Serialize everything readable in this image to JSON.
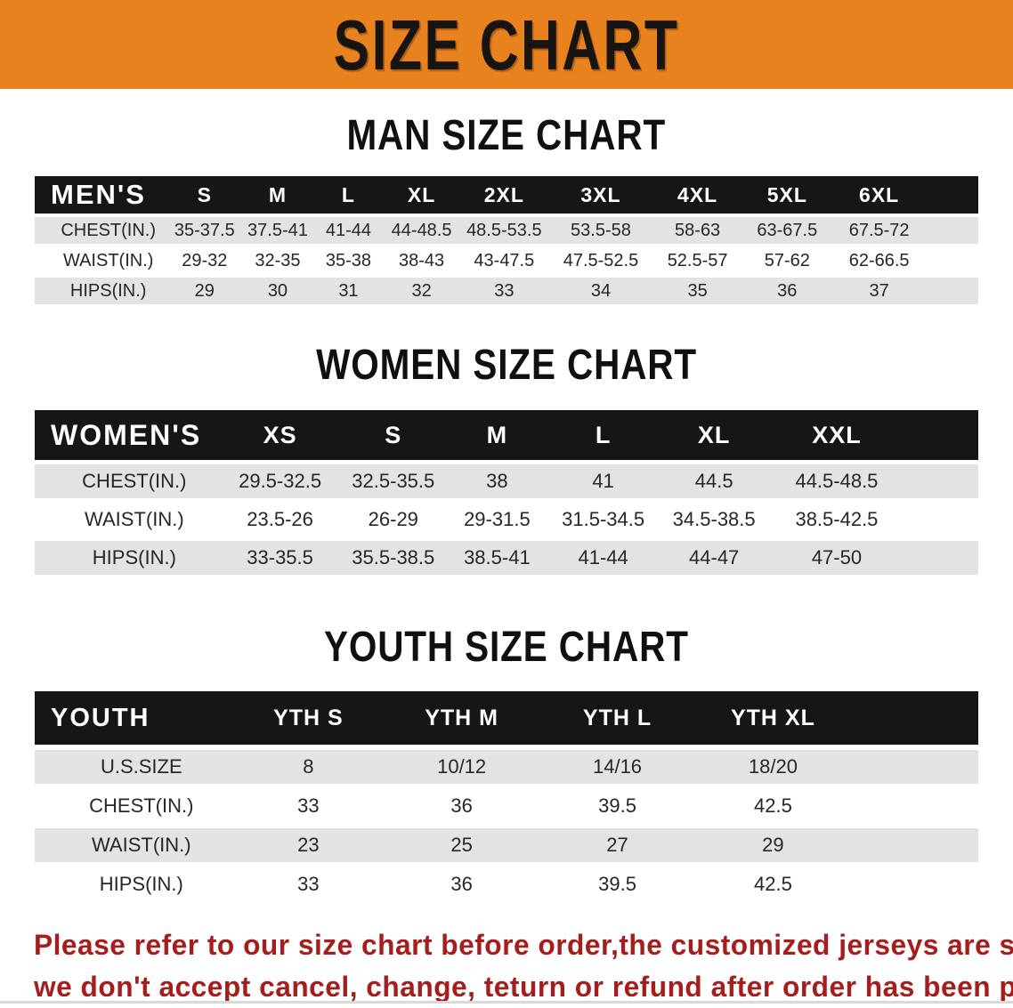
{
  "banner": {
    "title": "SIZE CHART"
  },
  "colors": {
    "banner_bg": "#e8821e",
    "banner_text": "#181411",
    "table_header_bar": "#161616",
    "row_stripe_gray": "#e3e3e3",
    "disclaimer_red": "#a51e1e"
  },
  "sections": {
    "men": {
      "heading": "MAN SIZE CHART",
      "header": {
        "label": "MEN'S",
        "sizes": [
          "S",
          "M",
          "L",
          "XL",
          "2XL",
          "3XL",
          "4XL",
          "5XL",
          "6XL"
        ]
      },
      "rows": [
        {
          "label": "CHEST(IN.)",
          "values": [
            "35-37.5",
            "37.5-41",
            "41-44",
            "44-48.5",
            "48.5-53.5",
            "53.5-58",
            "58-63",
            "63-67.5",
            "67.5-72"
          ]
        },
        {
          "label": "WAIST(IN.)",
          "values": [
            "29-32",
            "32-35",
            "35-38",
            "38-43",
            "43-47.5",
            "47.5-52.5",
            "52.5-57",
            "57-62",
            "62-66.5"
          ]
        },
        {
          "label": "HIPS(IN.)",
          "values": [
            "29",
            "30",
            "31",
            "32",
            "33",
            "34",
            "35",
            "36",
            "37"
          ]
        }
      ]
    },
    "women": {
      "heading": "WOMEN SIZE CHART",
      "header": {
        "label": "WOMEN'S",
        "sizes": [
          "XS",
          "S",
          "M",
          "L",
          "XL",
          "XXL"
        ]
      },
      "rows": [
        {
          "label": "CHEST(IN.)",
          "values": [
            "29.5-32.5",
            "32.5-35.5",
            "38",
            "41",
            "44.5",
            "44.5-48.5"
          ]
        },
        {
          "label": "WAIST(IN.)",
          "values": [
            "23.5-26",
            "26-29",
            "29-31.5",
            "31.5-34.5",
            "34.5-38.5",
            "38.5-42.5"
          ]
        },
        {
          "label": "HIPS(IN.)",
          "values": [
            "33-35.5",
            "35.5-38.5",
            "38.5-41",
            "41-44",
            "44-47",
            "47-50"
          ]
        }
      ]
    },
    "youth": {
      "heading": "YOUTH SIZE CHART",
      "header": {
        "label": "YOUTH",
        "sizes": [
          "YTH S",
          "YTH M",
          "YTH L",
          "YTH XL"
        ]
      },
      "rows": [
        {
          "label": "U.S.SIZE",
          "values": [
            "8",
            "10/12",
            "14/16",
            "18/20"
          ]
        },
        {
          "label": "CHEST(IN.)",
          "values": [
            "33",
            "36",
            "39.5",
            "42.5"
          ]
        },
        {
          "label": "WAIST(IN.)",
          "values": [
            "23",
            "25",
            "27",
            "29"
          ]
        },
        {
          "label": "HIPS(IN.)",
          "values": [
            "33",
            "36",
            "39.5",
            "42.5"
          ]
        }
      ]
    }
  },
  "footer": {
    "line1": "Please refer to our size chart before order,the customized jerseys are special products,",
    "line2": "we don't accept cancel, change, teturn or refund after order has been placed!"
  }
}
